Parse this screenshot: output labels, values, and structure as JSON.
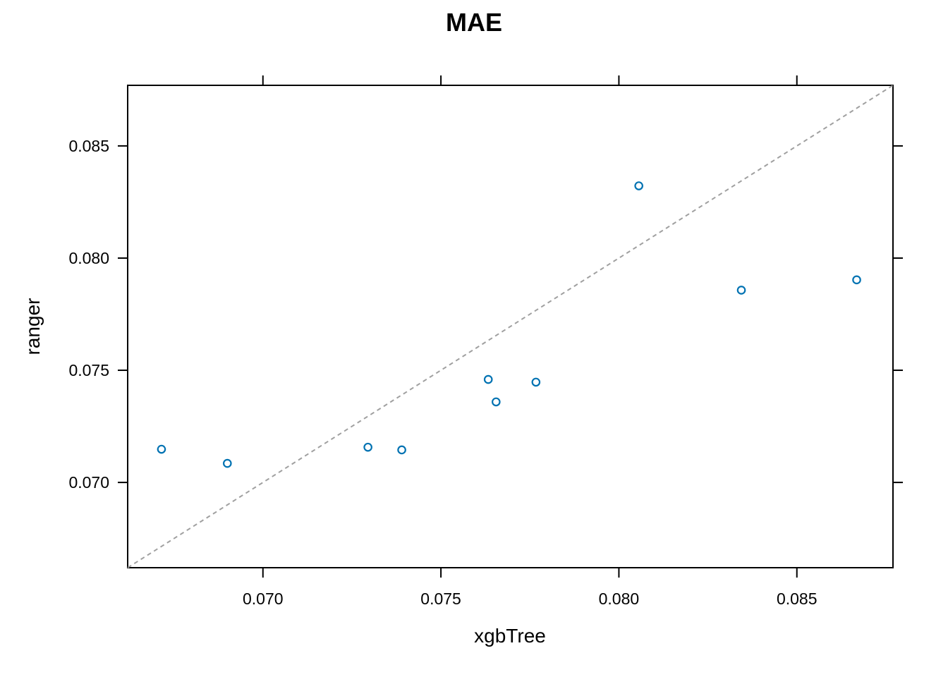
{
  "chart_data": {
    "type": "scatter",
    "title": "MAE",
    "xlabel": "xgbTree",
    "ylabel": "ranger",
    "xlim": [
      0.0662,
      0.0877
    ],
    "ylim": [
      0.0662,
      0.0877
    ],
    "x_ticks": [
      0.07,
      0.075,
      0.08,
      0.085
    ],
    "y_ticks": [
      0.07,
      0.075,
      0.08,
      0.085
    ],
    "x_tick_labels": [
      "0.070",
      "0.075",
      "0.080",
      "0.085"
    ],
    "y_tick_labels": [
      "0.070",
      "0.075",
      "0.080",
      "0.085"
    ],
    "reference_line": "identity (dashed)",
    "grid": false,
    "point_color": "#0072B2",
    "reference_line_color": "#a0a0a0",
    "points": [
      {
        "x": 0.06715,
        "y": 0.07148
      },
      {
        "x": 0.069,
        "y": 0.07085
      },
      {
        "x": 0.07295,
        "y": 0.07157
      },
      {
        "x": 0.0739,
        "y": 0.07145
      },
      {
        "x": 0.07633,
        "y": 0.07459
      },
      {
        "x": 0.07655,
        "y": 0.07359
      },
      {
        "x": 0.07767,
        "y": 0.07447
      },
      {
        "x": 0.08056,
        "y": 0.08322
      },
      {
        "x": 0.08344,
        "y": 0.07857
      },
      {
        "x": 0.08668,
        "y": 0.07903
      }
    ]
  }
}
